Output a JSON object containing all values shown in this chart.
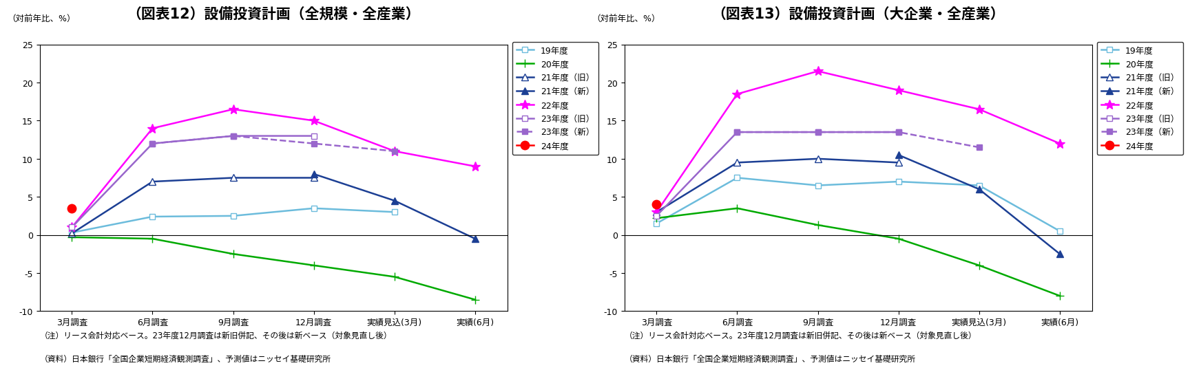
{
  "chart1": {
    "title": "（図表12）設備投資計画（全規模・全産業）",
    "ylabel": "（対前年比、%）",
    "note1": "（注）リース会計対応ベース。23年度12月調査は新旧併記、その後は新ベース（対象見直し後）",
    "note2": "（資料）日本銀行「全国企業短期経済観測調査」、予測値はニッセイ基礎研究所",
    "xticklabels": [
      "3月調査",
      "6月調査",
      "9月調査",
      "12月調査",
      "実績見込(3月)",
      "実績(6月)"
    ],
    "series": [
      {
        "label": "19年度",
        "color": "#6CBCDC",
        "marker": "s",
        "markerfacecolor": "white",
        "linestyle": "-",
        "values": [
          0.3,
          2.4,
          2.5,
          3.5,
          3.0,
          null
        ]
      },
      {
        "label": "20年度",
        "color": "#00AA00",
        "marker": "+",
        "markerfacecolor": "#00AA00",
        "linestyle": "-",
        "values": [
          -0.3,
          -0.5,
          -2.5,
          -4.0,
          -5.5,
          -8.5
        ]
      },
      {
        "label": "21年度（旧）",
        "color": "#1C3F94",
        "marker": "^",
        "markerfacecolor": "white",
        "linestyle": "-",
        "values": [
          0.2,
          7.0,
          7.5,
          7.5,
          null,
          null
        ]
      },
      {
        "label": "21年度（新）",
        "color": "#1C3F94",
        "marker": "^",
        "markerfacecolor": "#1C3F94",
        "linestyle": "-",
        "values": [
          null,
          null,
          null,
          8.0,
          4.5,
          -0.5
        ]
      },
      {
        "label": "22年度",
        "color": "#FF00FF",
        "marker": "*",
        "markerfacecolor": "#FF00FF",
        "linestyle": "-",
        "values": [
          1.0,
          14.0,
          16.5,
          15.0,
          11.0,
          9.0
        ]
      },
      {
        "label": "23年度（旧）",
        "color": "#9966CC",
        "marker": "s",
        "markerfacecolor": "white",
        "linestyle": "-",
        "values": [
          1.0,
          12.0,
          13.0,
          13.0,
          null,
          null
        ]
      },
      {
        "label": "23年度（新）",
        "color": "#9966CC",
        "marker": "s",
        "markerfacecolor": "#9966CC",
        "linestyle": "--",
        "values": [
          null,
          12.0,
          13.0,
          12.0,
          11.0,
          null
        ]
      },
      {
        "label": "24年度",
        "color": "#FF0000",
        "marker": "o",
        "markerfacecolor": "#FF0000",
        "linestyle": "-",
        "values": [
          3.5,
          null,
          null,
          null,
          null,
          null
        ]
      }
    ],
    "ylim": [
      -10,
      25
    ],
    "yticks": [
      -10,
      -5,
      0,
      5,
      10,
      15,
      20,
      25
    ]
  },
  "chart2": {
    "title": "（図表13）設備投資計画（大企業・全産業）",
    "ylabel": "（対前年比、%）",
    "note1": "（注）リース会計対応ベース。23年度12月調査は新旧併記、その後は新ベース（対象見直し後）",
    "note2": "（資料）日本銀行「全国企業短期経済観測調査」、予測値はニッセイ基礎研究所",
    "xticklabels": [
      "3月調査",
      "6月調査",
      "9月調査",
      "12月調査",
      "実績見込(3月)",
      "実績(6月)"
    ],
    "series": [
      {
        "label": "19年度",
        "color": "#6CBCDC",
        "marker": "s",
        "markerfacecolor": "white",
        "linestyle": "-",
        "values": [
          1.5,
          7.5,
          6.5,
          7.0,
          6.5,
          0.5
        ]
      },
      {
        "label": "20年度",
        "color": "#00AA00",
        "marker": "+",
        "markerfacecolor": "#00AA00",
        "linestyle": "-",
        "values": [
          2.2,
          3.5,
          1.3,
          -0.5,
          -4.0,
          -8.0
        ]
      },
      {
        "label": "21年度（旧）",
        "color": "#1C3F94",
        "marker": "^",
        "markerfacecolor": "white",
        "linestyle": "-",
        "values": [
          3.0,
          9.5,
          10.0,
          9.5,
          null,
          null
        ]
      },
      {
        "label": "21年度（新）",
        "color": "#1C3F94",
        "marker": "^",
        "markerfacecolor": "#1C3F94",
        "linestyle": "-",
        "values": [
          null,
          null,
          null,
          10.5,
          6.0,
          -2.5
        ]
      },
      {
        "label": "22年度",
        "color": "#FF00FF",
        "marker": "*",
        "markerfacecolor": "#FF00FF",
        "linestyle": "-",
        "values": [
          3.0,
          18.5,
          21.5,
          19.0,
          16.5,
          12.0
        ]
      },
      {
        "label": "23年度（旧）",
        "color": "#9966CC",
        "marker": "s",
        "markerfacecolor": "white",
        "linestyle": "-",
        "values": [
          2.5,
          13.5,
          13.5,
          13.5,
          null,
          null
        ]
      },
      {
        "label": "23年度（新）",
        "color": "#9966CC",
        "marker": "s",
        "markerfacecolor": "#9966CC",
        "linestyle": "--",
        "values": [
          null,
          13.5,
          13.5,
          13.5,
          11.5,
          null
        ]
      },
      {
        "label": "24年度",
        "color": "#FF0000",
        "marker": "o",
        "markerfacecolor": "#FF0000",
        "linestyle": "-",
        "values": [
          4.0,
          null,
          null,
          null,
          null,
          null
        ]
      }
    ],
    "ylim": [
      -10,
      25
    ],
    "yticks": [
      -10,
      -5,
      0,
      5,
      10,
      15,
      20,
      25
    ]
  },
  "background_color": "#FFFFFF",
  "plot_background": "#FFFFFF",
  "title_fontsize": 15,
  "label_fontsize": 9,
  "tick_fontsize": 9,
  "note_fontsize": 8.5,
  "legend_fontsize": 9
}
